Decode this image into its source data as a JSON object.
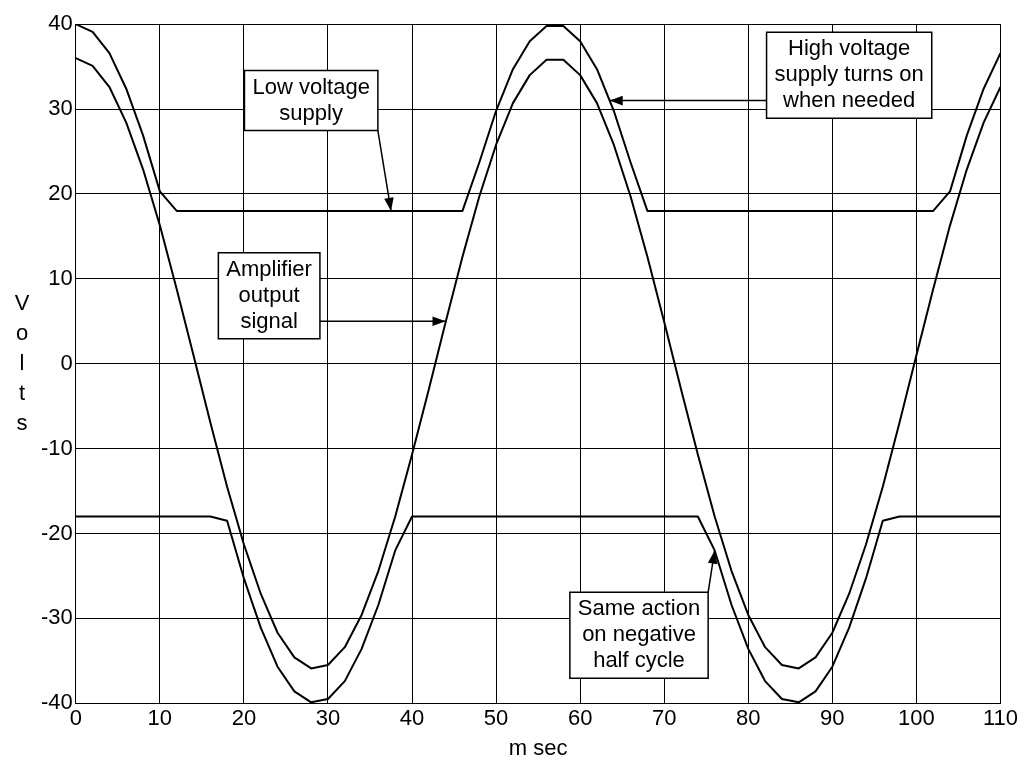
{
  "chart_data": {
    "type": "line",
    "xlabel": "m sec",
    "ylabel": "Volts",
    "x": [
      0,
      2,
      4,
      6,
      8,
      10,
      12,
      14,
      16,
      18,
      20,
      22,
      24,
      26,
      28,
      30,
      32,
      34,
      36,
      38,
      40,
      42,
      44,
      46,
      48,
      50,
      52,
      54,
      56,
      58,
      60,
      62,
      64,
      66,
      68,
      70,
      72,
      74,
      76,
      78,
      80,
      82,
      84,
      86,
      88,
      90,
      92,
      94,
      96,
      98,
      100,
      102,
      104,
      106,
      108,
      110
    ],
    "series": [
      {
        "color": "#000000",
        "values": [
          40,
          39.1,
          36.6,
          32.4,
          26.9,
          20.3,
          18,
          18,
          18,
          18,
          18,
          18,
          18,
          18,
          18,
          18,
          18,
          18,
          18,
          18,
          18,
          18,
          18,
          18,
          23.7,
          29.8,
          34.7,
          38,
          39.8,
          39.8,
          38,
          34.7,
          29.8,
          23.7,
          18,
          18,
          18,
          18,
          18,
          18,
          18,
          18,
          18,
          18,
          18,
          18,
          18,
          18,
          18,
          18,
          18,
          18,
          20.3,
          26.9,
          32.4,
          36.6
        ]
      },
      {
        "color": "#000000",
        "values": [
          36,
          35.1,
          32.6,
          28.4,
          22.9,
          16.3,
          8.8,
          1,
          -6.9,
          -14.5,
          -21.3,
          -27.1,
          -31.7,
          -34.6,
          -35.9,
          -35.5,
          -33.4,
          -29.6,
          -24.4,
          -18,
          -10.7,
          -3,
          4.9,
          12.6,
          19.7,
          25.8,
          30.7,
          34,
          35.8,
          35.8,
          34,
          30.7,
          25.8,
          19.7,
          12.6,
          4.9,
          -3,
          -10.7,
          -18,
          -24.4,
          -29.6,
          -33.4,
          -35.5,
          -35.9,
          -34.6,
          -31.7,
          -27.1,
          -21.3,
          -14.5,
          -6.9,
          1,
          8.8,
          16.3,
          22.9,
          28.4,
          32.6
        ]
      },
      {
        "color": "#000000",
        "values": [
          -18,
          -18,
          -18,
          -18,
          -18,
          -18,
          -18,
          -18,
          -18,
          -18.5,
          -25.3,
          -31.1,
          -35.7,
          -38.6,
          -39.9,
          -39.5,
          -37.4,
          -33.6,
          -28.4,
          -22,
          -18,
          -18,
          -18,
          -18,
          -18,
          -18,
          -18,
          -18,
          -18,
          -18,
          -18,
          -18,
          -18,
          -18,
          -18,
          -18,
          -18,
          -18,
          -22,
          -28.4,
          -33.6,
          -37.4,
          -39.5,
          -39.9,
          -38.6,
          -35.7,
          -31.1,
          -25.3,
          -18.5,
          -18,
          -18,
          -18,
          -18,
          -18,
          -18,
          -18
        ]
      }
    ],
    "xlim": [
      0,
      110
    ],
    "xticks": [
      0,
      10,
      20,
      30,
      40,
      50,
      60,
      70,
      80,
      90,
      100,
      110
    ],
    "ylim": [
      -40,
      40
    ],
    "yticks": [
      -40,
      -30,
      -20,
      -10,
      0,
      10,
      20,
      30,
      40
    ],
    "grid": true,
    "marker": "none",
    "line_style": "solid",
    "annotations": [
      {
        "text": "Low voltage\nsupply",
        "x": 37.5,
        "y": 18
      },
      {
        "text": "High voltage\nsupply turns on\nwhen needed",
        "x": 63.5,
        "y": 31
      },
      {
        "text": "Amplifier\noutput\nsignal",
        "x": 44,
        "y": 5
      },
      {
        "text": "Same action\non negative\nhalf cycle",
        "x": 76,
        "y": -22
      }
    ]
  }
}
